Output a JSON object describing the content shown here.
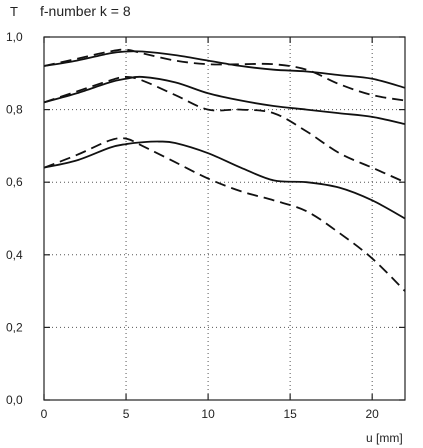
{
  "chart_data": {
    "type": "line",
    "title": "f-number k = 8",
    "ylabel": "T",
    "xlabel": "u [mm]",
    "xlim": [
      0,
      22
    ],
    "ylim": [
      0,
      1.0
    ],
    "x_ticks": [
      0,
      5,
      10,
      15,
      20
    ],
    "x_tick_labels": [
      "0",
      "5",
      "10",
      "15",
      "20"
    ],
    "y_ticks": [
      0,
      0.2,
      0.4,
      0.6,
      0.8,
      1.0
    ],
    "y_tick_labels": [
      "0,0",
      "0,2",
      "0,4",
      "0,6",
      "0,8",
      "1,0"
    ],
    "grid": "dotted",
    "legend": "none",
    "series": [
      {
        "style": "solid",
        "x": [
          0,
          2,
          4,
          5,
          6,
          8,
          10,
          12,
          14,
          16,
          18,
          20,
          22
        ],
        "y": [
          0.92,
          0.935,
          0.955,
          0.96,
          0.96,
          0.95,
          0.935,
          0.92,
          0.91,
          0.905,
          0.895,
          0.885,
          0.86
        ]
      },
      {
        "style": "dashed",
        "x": [
          0,
          2,
          4,
          5,
          6,
          8,
          10,
          12,
          14,
          16,
          18,
          20,
          22
        ],
        "y": [
          0.92,
          0.94,
          0.96,
          0.965,
          0.955,
          0.935,
          0.925,
          0.925,
          0.925,
          0.91,
          0.87,
          0.84,
          0.825
        ]
      },
      {
        "style": "solid",
        "x": [
          0,
          2,
          4,
          5,
          6,
          8,
          10,
          12,
          14,
          16,
          18,
          20,
          22
        ],
        "y": [
          0.82,
          0.845,
          0.875,
          0.885,
          0.89,
          0.875,
          0.845,
          0.825,
          0.81,
          0.8,
          0.79,
          0.78,
          0.76
        ]
      },
      {
        "style": "dashed",
        "x": [
          0,
          2,
          4,
          5,
          6,
          8,
          10,
          12,
          14,
          16,
          18,
          20,
          22
        ],
        "y": [
          0.82,
          0.85,
          0.88,
          0.89,
          0.88,
          0.84,
          0.8,
          0.8,
          0.79,
          0.74,
          0.68,
          0.64,
          0.6
        ]
      },
      {
        "style": "solid",
        "x": [
          0,
          2,
          4,
          5,
          6,
          7,
          8,
          10,
          12,
          14,
          16,
          18,
          20,
          22
        ],
        "y": [
          0.64,
          0.66,
          0.695,
          0.705,
          0.71,
          0.712,
          0.708,
          0.68,
          0.64,
          0.605,
          0.6,
          0.585,
          0.55,
          0.5
        ]
      },
      {
        "style": "dashed",
        "x": [
          0,
          2,
          4,
          5,
          6,
          8,
          10,
          12,
          14,
          16,
          18,
          20,
          22
        ],
        "y": [
          0.64,
          0.675,
          0.715,
          0.72,
          0.7,
          0.655,
          0.61,
          0.575,
          0.55,
          0.52,
          0.46,
          0.39,
          0.3
        ]
      }
    ]
  }
}
